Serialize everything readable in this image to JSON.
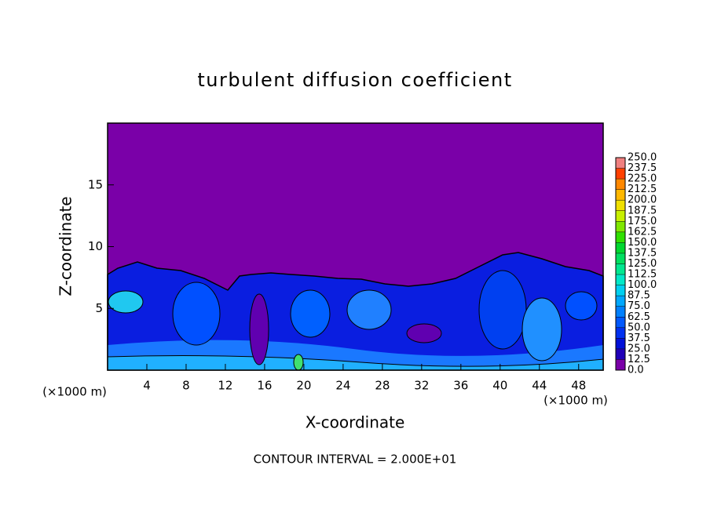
{
  "chart_data": {
    "type": "contour",
    "title": "turbulent diffusion coefficient",
    "xlabel": "X-coordinate",
    "ylabel": "Z-coordinate",
    "xunit": "(×1000 m)",
    "yunit": "(×1000 m)",
    "annotation": "CONTOUR INTERVAL = 2.000E+01",
    "xlim": [
      0,
      50.5
    ],
    "ylim": [
      0,
      20
    ],
    "xticks": [
      4,
      8,
      12,
      16,
      20,
      24,
      28,
      32,
      36,
      40,
      44,
      48
    ],
    "yticks": [
      5,
      10,
      15
    ],
    "colorbar": {
      "ticks": [
        {
          "value": 0,
          "label": "0.0"
        },
        12.5,
        {
          "value": 25,
          "label": "25.0"
        },
        37.5,
        {
          "value": 50,
          "label": "50.0"
        },
        62.5,
        {
          "value": 75,
          "label": "75.0"
        },
        87.5,
        {
          "value": 100,
          "label": "100.0"
        },
        112.5,
        {
          "value": 125,
          "label": "125.0"
        },
        137.5,
        {
          "value": 150,
          "label": "150.0"
        },
        162.5,
        {
          "value": 175,
          "label": "175.0"
        },
        187.5,
        {
          "value": 200,
          "label": "200.0"
        },
        212.5,
        {
          "value": 225,
          "label": "225.0"
        },
        237.5,
        {
          "value": 250,
          "label": "250.0"
        }
      ],
      "colors": [
        "#7a00a8",
        "#2000b8",
        "#0010d8",
        "#0030f0",
        "#0058ff",
        "#0080ff",
        "#00a8ff",
        "#00d0f0",
        "#00e8c8",
        "#00e890",
        "#00e060",
        "#00d830",
        "#30e000",
        "#80e800",
        "#c8f000",
        "#f0e000",
        "#ffb800",
        "#ff8800",
        "#ff4000",
        "#f08080"
      ]
    }
  }
}
